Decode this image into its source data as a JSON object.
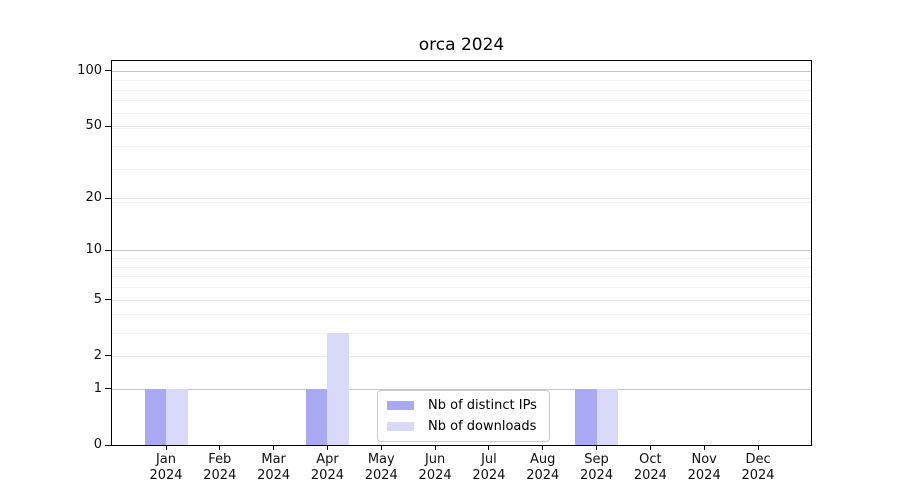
{
  "title": "orca 2024",
  "chart_data": {
    "type": "bar",
    "title": "orca 2024",
    "categories": [
      "Jan",
      "Feb",
      "Mar",
      "Apr",
      "May",
      "Jun",
      "Jul",
      "Aug",
      "Sep",
      "Oct",
      "Nov",
      "Dec"
    ],
    "year_label": "2024",
    "series": [
      {
        "name": "Nb of distinct IPs",
        "color": "#a9a9f3",
        "values": [
          1,
          0,
          0,
          1,
          0,
          0,
          0,
          0,
          1,
          0,
          0,
          0
        ]
      },
      {
        "name": "Nb of downloads",
        "color": "#d9d9f9",
        "values": [
          1,
          0,
          0,
          3,
          0,
          0,
          0,
          0,
          1,
          0,
          0,
          0
        ]
      }
    ],
    "yscale": "log1p",
    "yticks": [
      0,
      1,
      2,
      5,
      10,
      20,
      50,
      100
    ],
    "yticks_emphasized": [
      1,
      10,
      100
    ],
    "minor_yticks": [
      3,
      4,
      6,
      7,
      8,
      9,
      19,
      29,
      39,
      49,
      59,
      69,
      79,
      89
    ],
    "ylim": [
      0,
      113
    ],
    "grid": true,
    "legend": {
      "position": "lower center"
    }
  },
  "colors": {
    "grid_major_strong": "#c6c6c6",
    "grid_major": "#e7e7e7",
    "grid_minor": "#f1f1f1",
    "spine": "#000000",
    "legend_border": "#cbcbcb",
    "background": "#ffffff"
  }
}
